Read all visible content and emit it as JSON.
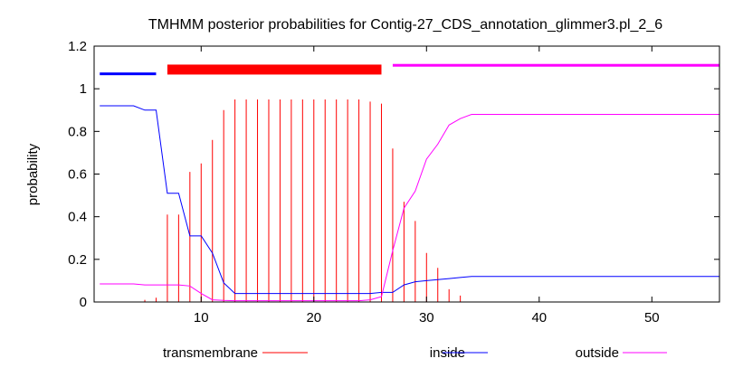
{
  "chart_data": {
    "type": "line",
    "title": "TMHMM posterior probabilities for Contig-27_CDS_annotation_glimmer3.pl_2_6",
    "xlabel": "",
    "ylabel": "probability",
    "xlim": [
      0.5,
      56
    ],
    "ylim": [
      0,
      1.2
    ],
    "x_ticks": [
      10,
      20,
      30,
      40,
      50
    ],
    "y_ticks": [
      0,
      0.2,
      0.4,
      0.6,
      0.8,
      1,
      1.2
    ],
    "x_tick_labels": [
      "10",
      "20",
      "30",
      "40",
      "50"
    ],
    "y_tick_labels": [
      "0",
      "0.2",
      "0.4",
      "0.6",
      "0.8",
      "1",
      "1.2"
    ],
    "grid": false,
    "legend_position": "bottom",
    "colors": {
      "transmembrane": "#ff0000",
      "inside": "#0000ff",
      "outside": "#ff00ff",
      "axis": "#000000"
    },
    "topology_bars": [
      {
        "segment": "inside",
        "start": 1,
        "end": 6,
        "level": 1.07,
        "color": "#0000ff"
      },
      {
        "segment": "transmembrane",
        "start": 7,
        "end": 26,
        "level": 1.09,
        "color": "#ff0000"
      },
      {
        "segment": "outside",
        "start": 27,
        "end": 56,
        "level": 1.11,
        "color": "#ff00ff"
      }
    ],
    "series": [
      {
        "name": "transmembrane",
        "style": "impulses",
        "x": [
          1,
          2,
          3,
          4,
          5,
          6,
          7,
          8,
          9,
          10,
          11,
          12,
          13,
          14,
          15,
          16,
          17,
          18,
          19,
          20,
          21,
          22,
          23,
          24,
          25,
          26,
          27,
          28,
          29,
          30,
          31,
          32,
          33,
          34,
          35,
          36,
          37,
          38,
          39,
          40,
          41,
          42,
          43,
          44,
          45,
          46,
          47,
          48,
          49,
          50,
          51,
          52,
          53,
          54,
          55,
          56
        ],
        "values": [
          0,
          0,
          0,
          0,
          0.01,
          0.02,
          0.41,
          0.41,
          0.61,
          0.65,
          0.76,
          0.9,
          0.95,
          0.95,
          0.95,
          0.95,
          0.95,
          0.95,
          0.95,
          0.95,
          0.95,
          0.95,
          0.95,
          0.95,
          0.94,
          0.93,
          0.72,
          0.47,
          0.38,
          0.23,
          0.16,
          0.06,
          0.03,
          0,
          0,
          0,
          0,
          0,
          0,
          0,
          0,
          0,
          0,
          0,
          0,
          0,
          0,
          0,
          0,
          0,
          0,
          0,
          0,
          0,
          0,
          0
        ]
      },
      {
        "name": "inside",
        "style": "line",
        "x": [
          1,
          2,
          3,
          4,
          5,
          6,
          7,
          8,
          9,
          10,
          11,
          12,
          13,
          14,
          15,
          16,
          17,
          18,
          19,
          20,
          21,
          22,
          23,
          24,
          25,
          26,
          27,
          28,
          29,
          30,
          31,
          32,
          33,
          34,
          35,
          36,
          37,
          38,
          39,
          40,
          41,
          42,
          43,
          44,
          45,
          46,
          47,
          48,
          49,
          50,
          51,
          52,
          53,
          54,
          55,
          56
        ],
        "values": [
          0.92,
          0.92,
          0.92,
          0.92,
          0.9,
          0.9,
          0.51,
          0.51,
          0.31,
          0.31,
          0.23,
          0.09,
          0.04,
          0.04,
          0.04,
          0.04,
          0.04,
          0.04,
          0.04,
          0.04,
          0.04,
          0.04,
          0.04,
          0.04,
          0.04,
          0.045,
          0.045,
          0.08,
          0.095,
          0.1,
          0.105,
          0.11,
          0.115,
          0.12,
          0.12,
          0.12,
          0.12,
          0.12,
          0.12,
          0.12,
          0.12,
          0.12,
          0.12,
          0.12,
          0.12,
          0.12,
          0.12,
          0.12,
          0.12,
          0.12,
          0.12,
          0.12,
          0.12,
          0.12,
          0.12,
          0.12
        ]
      },
      {
        "name": "outside",
        "style": "line",
        "x": [
          1,
          2,
          3,
          4,
          5,
          6,
          7,
          8,
          9,
          10,
          11,
          12,
          13,
          14,
          15,
          16,
          17,
          18,
          19,
          20,
          21,
          22,
          23,
          24,
          25,
          26,
          27,
          28,
          29,
          30,
          31,
          32,
          33,
          34,
          35,
          36,
          37,
          38,
          39,
          40,
          41,
          42,
          43,
          44,
          45,
          46,
          47,
          48,
          49,
          50,
          51,
          52,
          53,
          54,
          55,
          56
        ],
        "values": [
          0.085,
          0.085,
          0.085,
          0.085,
          0.08,
          0.08,
          0.08,
          0.08,
          0.075,
          0.04,
          0.01,
          0.007,
          0.006,
          0.006,
          0.006,
          0.006,
          0.006,
          0.006,
          0.006,
          0.006,
          0.006,
          0.006,
          0.006,
          0.006,
          0.01,
          0.025,
          0.24,
          0.44,
          0.52,
          0.67,
          0.74,
          0.83,
          0.86,
          0.88,
          0.88,
          0.88,
          0.88,
          0.88,
          0.88,
          0.88,
          0.88,
          0.88,
          0.88,
          0.88,
          0.88,
          0.88,
          0.88,
          0.88,
          0.88,
          0.88,
          0.88,
          0.88,
          0.88,
          0.88,
          0.88,
          0.88
        ]
      }
    ]
  }
}
